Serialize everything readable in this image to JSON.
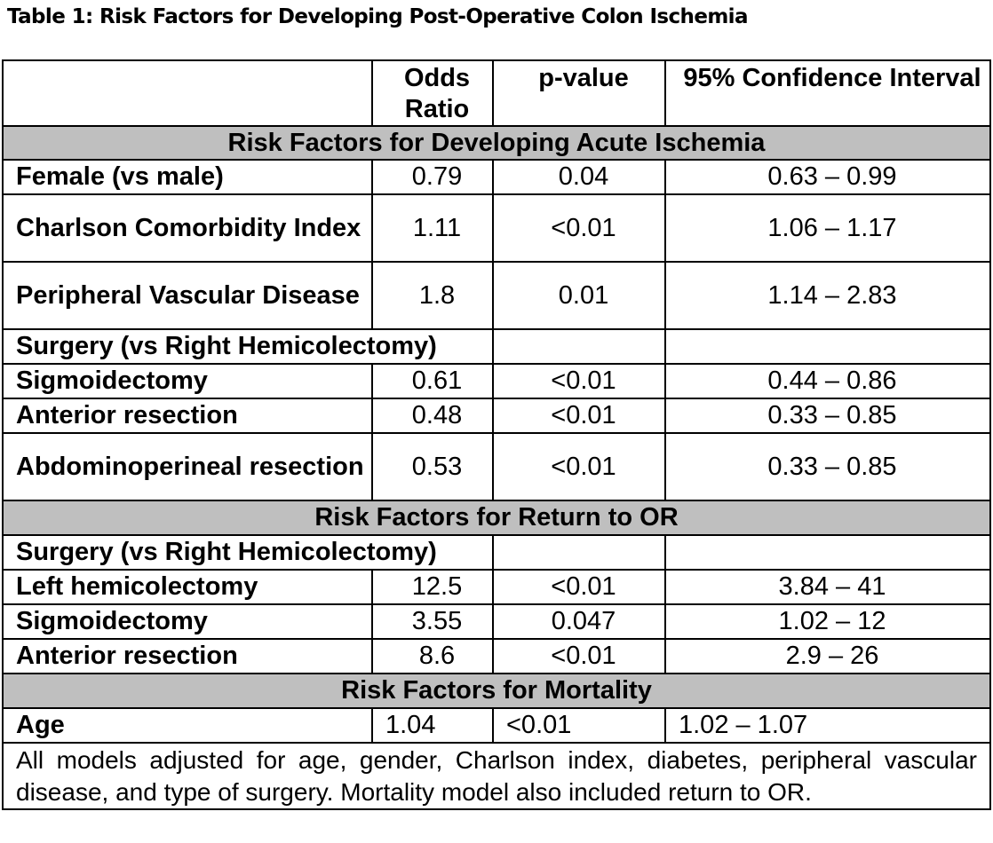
{
  "title": "Table 1: Risk Factors for Developing Post-Operative Colon Ischemia",
  "columns": {
    "label": "",
    "odds_ratio": "Odds Ratio",
    "p_value": "p-value",
    "ci": "95% Confidence Interval"
  },
  "sections": [
    {
      "heading": "Risk Factors for Developing Acute Ischemia",
      "rows": [
        {
          "label": "Female (vs male)",
          "or": "0.79",
          "p": "0.04",
          "ci": "0.63 – 0.99"
        },
        {
          "label": "Charlson Comorbidity Index",
          "or": "1.11",
          "p": "<0.01",
          "ci": "1.06 – 1.17"
        },
        {
          "label": "Peripheral Vascular Disease",
          "or": "1.8",
          "p": "0.01",
          "ci": "1.14 – 2.83"
        },
        {
          "label": "Surgery (vs Right Hemicolectomy)"
        },
        {
          "label": "Sigmoidectomy",
          "or": "0.61",
          "p": "<0.01",
          "ci": "0.44 – 0.86"
        },
        {
          "label": "Anterior resection",
          "or": "0.48",
          "p": "<0.01",
          "ci": "0.33 – 0.85"
        },
        {
          "label": "Abdominoperineal resection",
          "or": "0.53",
          "p": "<0.01",
          "ci": "0.33 – 0.85"
        }
      ]
    },
    {
      "heading": "Risk Factors for Return to OR",
      "rows": [
        {
          "label": "Surgery (vs Right Hemicolectomy)"
        },
        {
          "label": "Left hemicolectomy",
          "or": "12.5",
          "p": "<0.01",
          "ci": "3.84 – 41"
        },
        {
          "label": "Sigmoidectomy",
          "or": "3.55",
          "p": "0.047",
          "ci": "1.02 – 12"
        },
        {
          "label": "Anterior resection",
          "or": "8.6",
          "p": "<0.01",
          "ci": "2.9 – 26"
        }
      ]
    },
    {
      "heading": "Risk Factors for Mortality",
      "rows": [
        {
          "label": "Age",
          "or": "1.04",
          "p": "<0.01",
          "ci": "1.02 – 1.07"
        }
      ]
    }
  ],
  "footnote": "All models adjusted for age, gender, Charlson index, diabetes, peripheral vascular disease, and type of surgery. Mortality model also included return to OR."
}
